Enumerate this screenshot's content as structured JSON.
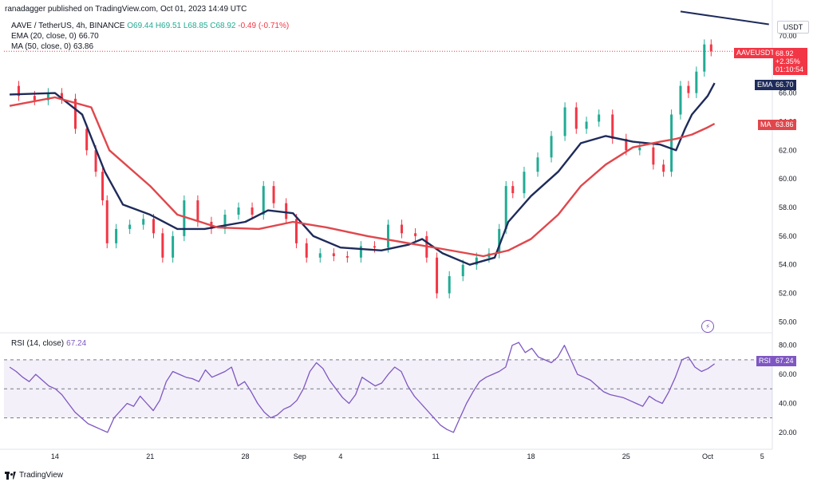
{
  "header": {
    "published": "ranadagger published on TradingView.com, Oct 01, 2023 14:49 UTC",
    "symbol": "AAVE / TetherUS, 4h, BINANCE",
    "ohlc": "O69.44 H69.51 L68.85 C68.92",
    "change": "-0.49 (-0.71%)"
  },
  "legend": {
    "ema_label": "EMA (20, close, 0)",
    "ema_value": "66.70",
    "ma_label": "MA (50, close, 0)",
    "ma_value": "63.86",
    "rsi_label": "RSI (14, close)",
    "rsi_value": "67.24"
  },
  "price_tags": {
    "symbol": "AAVEUSDT",
    "price": "68.92",
    "change_pct": "+2.35%",
    "countdown": "01:10:54",
    "ema": "66.70",
    "ema_name": "EMA",
    "ma": "63.86",
    "ma_name": "MA",
    "rsi": "67.24",
    "rsi_name": "RSI"
  },
  "unit": "USDT",
  "footer": "TradingView",
  "colors": {
    "up": "#22ab94",
    "down": "#f23645",
    "ema": "#1e2b5a",
    "ma": "#e0474c",
    "rsi": "#7e57c2",
    "trendline": "#1e2b5a"
  },
  "chart_data": [
    {
      "type": "candlestick",
      "title": "AAVE / TetherUS, 4h, BINANCE",
      "x_ticks": [
        "14",
        "21",
        "28",
        "Sep",
        "4",
        "11",
        "18",
        "25",
        "Oct",
        "5"
      ],
      "x_tick_dates": [
        "2023-08-14",
        "2023-08-21",
        "2023-08-28",
        "2023-09-01",
        "2023-09-04",
        "2023-09-11",
        "2023-09-18",
        "2023-09-25",
        "2023-10-01",
        "2023-10-05"
      ],
      "y_ticks": [
        50,
        52,
        54,
        56,
        58,
        60,
        62,
        64,
        66,
        68,
        70
      ],
      "ylim": [
        49.3,
        71.5
      ],
      "xlim": [
        "2023-08-10T06:00",
        "2023-10-05T18:00"
      ],
      "candles_close": [
        {
          "t": "2023-08-10T16:00",
          "c": 66.5
        },
        {
          "t": "2023-08-12T00:00",
          "c": 65.8
        },
        {
          "t": "2023-08-13T00:00",
          "c": 65.5
        },
        {
          "t": "2023-08-14T00:00",
          "c": 66.0
        },
        {
          "t": "2023-08-15T00:00",
          "c": 65.6
        },
        {
          "t": "2023-08-16T00:00",
          "c": 63.5
        },
        {
          "t": "2023-08-16T16:00",
          "c": 62.0
        },
        {
          "t": "2023-08-17T08:00",
          "c": 60.5
        },
        {
          "t": "2023-08-17T16:00",
          "c": 58.5
        },
        {
          "t": "2023-08-18T00:00",
          "c": 55.5
        },
        {
          "t": "2023-08-19T00:00",
          "c": 56.5
        },
        {
          "t": "2023-08-20T00:00",
          "c": 56.8
        },
        {
          "t": "2023-08-21T00:00",
          "c": 57.2
        },
        {
          "t": "2023-08-21T12:00",
          "c": 56.2
        },
        {
          "t": "2023-08-22T08:00",
          "c": 54.5
        },
        {
          "t": "2023-08-23T00:00",
          "c": 56.0
        },
        {
          "t": "2023-08-24T00:00",
          "c": 58.5
        },
        {
          "t": "2023-08-25T00:00",
          "c": 57.0
        },
        {
          "t": "2023-08-26T00:00",
          "c": 56.5
        },
        {
          "t": "2023-08-27T00:00",
          "c": 57.5
        },
        {
          "t": "2023-08-28T00:00",
          "c": 58.0
        },
        {
          "t": "2023-08-29T00:00",
          "c": 57.5
        },
        {
          "t": "2023-08-29T16:00",
          "c": 59.5
        },
        {
          "t": "2023-08-30T12:00",
          "c": 58.3
        },
        {
          "t": "2023-08-31T12:00",
          "c": 57.2
        },
        {
          "t": "2023-09-01T00:00",
          "c": 55.5
        },
        {
          "t": "2023-09-02T00:00",
          "c": 54.5
        },
        {
          "t": "2023-09-03T00:00",
          "c": 54.8
        },
        {
          "t": "2023-09-04T00:00",
          "c": 54.6
        },
        {
          "t": "2023-09-05T00:00",
          "c": 54.5
        },
        {
          "t": "2023-09-06T00:00",
          "c": 55.3
        },
        {
          "t": "2023-09-07T00:00",
          "c": 55.2
        },
        {
          "t": "2023-09-08T00:00",
          "c": 56.8
        },
        {
          "t": "2023-09-09T00:00",
          "c": 56.2
        },
        {
          "t": "2023-09-10T00:00",
          "c": 56.0
        },
        {
          "t": "2023-09-10T16:00",
          "c": 54.5
        },
        {
          "t": "2023-09-11T12:00",
          "c": 52.0
        },
        {
          "t": "2023-09-12T12:00",
          "c": 53.2
        },
        {
          "t": "2023-09-13T12:00",
          "c": 54.0
        },
        {
          "t": "2023-09-14T12:00",
          "c": 54.5
        },
        {
          "t": "2023-09-15T08:00",
          "c": 54.8
        },
        {
          "t": "2023-09-16T00:00",
          "c": 56.5
        },
        {
          "t": "2023-09-16T08:00",
          "c": 59.5
        },
        {
          "t": "2023-09-17T00:00",
          "c": 59.0
        },
        {
          "t": "2023-09-18T00:00",
          "c": 60.5
        },
        {
          "t": "2023-09-19T00:00",
          "c": 61.5
        },
        {
          "t": "2023-09-20T00:00",
          "c": 63.0
        },
        {
          "t": "2023-09-21T00:00",
          "c": 65.0
        },
        {
          "t": "2023-09-21T16:00",
          "c": 63.5
        },
        {
          "t": "2023-09-22T12:00",
          "c": 64.0
        },
        {
          "t": "2023-09-23T12:00",
          "c": 64.5
        },
        {
          "t": "2023-09-24T12:00",
          "c": 62.8
        },
        {
          "t": "2023-09-25T12:00",
          "c": 62.0
        },
        {
          "t": "2023-09-26T12:00",
          "c": 62.2
        },
        {
          "t": "2023-09-27T12:00",
          "c": 61.0
        },
        {
          "t": "2023-09-28T00:00",
          "c": 60.5
        },
        {
          "t": "2023-09-28T16:00",
          "c": 64.5
        },
        {
          "t": "2023-09-29T08:00",
          "c": 66.5
        },
        {
          "t": "2023-09-29T20:00",
          "c": 66.0
        },
        {
          "t": "2023-09-30T12:00",
          "c": 67.5
        },
        {
          "t": "2023-10-01T00:00",
          "c": 69.4
        },
        {
          "t": "2023-10-01T12:00",
          "c": 68.92
        }
      ],
      "overlays": [
        {
          "name": "EMA",
          "points": [
            [
              0,
              65.9
            ],
            [
              3,
              66.0
            ],
            [
              5,
              64.5
            ],
            [
              8,
              60.5
            ],
            [
              10,
              58.2
            ],
            [
              12,
              57.5
            ],
            [
              15,
              56.5
            ],
            [
              17,
              56.5
            ],
            [
              20,
              57.0
            ],
            [
              22,
              57.8
            ],
            [
              24,
              57.6
            ],
            [
              26,
              56.0
            ],
            [
              28,
              55.2
            ],
            [
              31,
              55.0
            ],
            [
              33,
              55.4
            ],
            [
              34,
              55.8
            ],
            [
              36,
              54.8
            ],
            [
              38,
              54.0
            ],
            [
              40,
              54.5
            ],
            [
              42,
              57.0
            ],
            [
              44,
              58.8
            ],
            [
              46,
              60.5
            ],
            [
              48,
              62.5
            ],
            [
              50,
              63.0
            ],
            [
              52,
              62.6
            ],
            [
              54,
              62.4
            ],
            [
              56,
              62.0
            ],
            [
              57,
              63.5
            ],
            [
              58,
              64.5
            ],
            [
              60,
              65.8
            ],
            [
              61,
              66.7
            ]
          ]
        },
        {
          "name": "MA",
          "points": [
            [
              0,
              65.1
            ],
            [
              3,
              65.7
            ],
            [
              6,
              65.0
            ],
            [
              9,
              62.0
            ],
            [
              12,
              59.5
            ],
            [
              15,
              57.5
            ],
            [
              18,
              56.6
            ],
            [
              21,
              56.5
            ],
            [
              24,
              57.0
            ],
            [
              27,
              56.6
            ],
            [
              30,
              56.0
            ],
            [
              33,
              55.5
            ],
            [
              36,
              55.1
            ],
            [
              39,
              54.6
            ],
            [
              42,
              55.0
            ],
            [
              44,
              55.8
            ],
            [
              46,
              57.5
            ],
            [
              48,
              59.5
            ],
            [
              50,
              61.0
            ],
            [
              52,
              62.2
            ],
            [
              54,
              62.6
            ],
            [
              56,
              62.8
            ],
            [
              58,
              63.1
            ],
            [
              60,
              63.6
            ],
            [
              61,
              63.86
            ]
          ]
        }
      ],
      "trendline": {
        "from": [
          "2023-09-29T00:00",
          71.7
        ],
        "to": [
          "2023-10-05T12:00",
          70.8
        ]
      }
    },
    {
      "type": "line",
      "title": "RSI (14, close)",
      "y_ticks": [
        20,
        40,
        60,
        80
      ],
      "ylim": [
        10,
        87
      ],
      "band": [
        30,
        70
      ],
      "midline": 50,
      "series": [
        {
          "name": "RSI",
          "values": [
            65,
            62,
            58,
            55,
            60,
            56,
            52,
            50,
            46,
            40,
            34,
            30,
            26,
            24,
            22,
            20,
            30,
            35,
            40,
            38,
            45,
            40,
            35,
            42,
            55,
            62,
            60,
            58,
            57,
            55,
            63,
            58,
            60,
            62,
            65,
            52,
            55,
            48,
            40,
            34,
            30,
            32,
            36,
            38,
            42,
            50,
            62,
            68,
            64,
            56,
            50,
            44,
            40,
            46,
            58,
            55,
            52,
            54,
            60,
            65,
            62,
            52,
            45,
            40,
            35,
            30,
            25,
            22,
            20,
            30,
            40,
            48,
            55,
            58,
            60,
            62,
            65,
            80,
            82,
            75,
            78,
            72,
            70,
            68,
            72,
            80,
            70,
            60,
            58,
            56,
            52,
            48,
            46,
            45,
            44,
            42,
            40,
            38,
            45,
            42,
            40,
            48,
            58,
            70,
            72,
            65,
            62,
            64,
            67.24
          ]
        }
      ]
    }
  ]
}
